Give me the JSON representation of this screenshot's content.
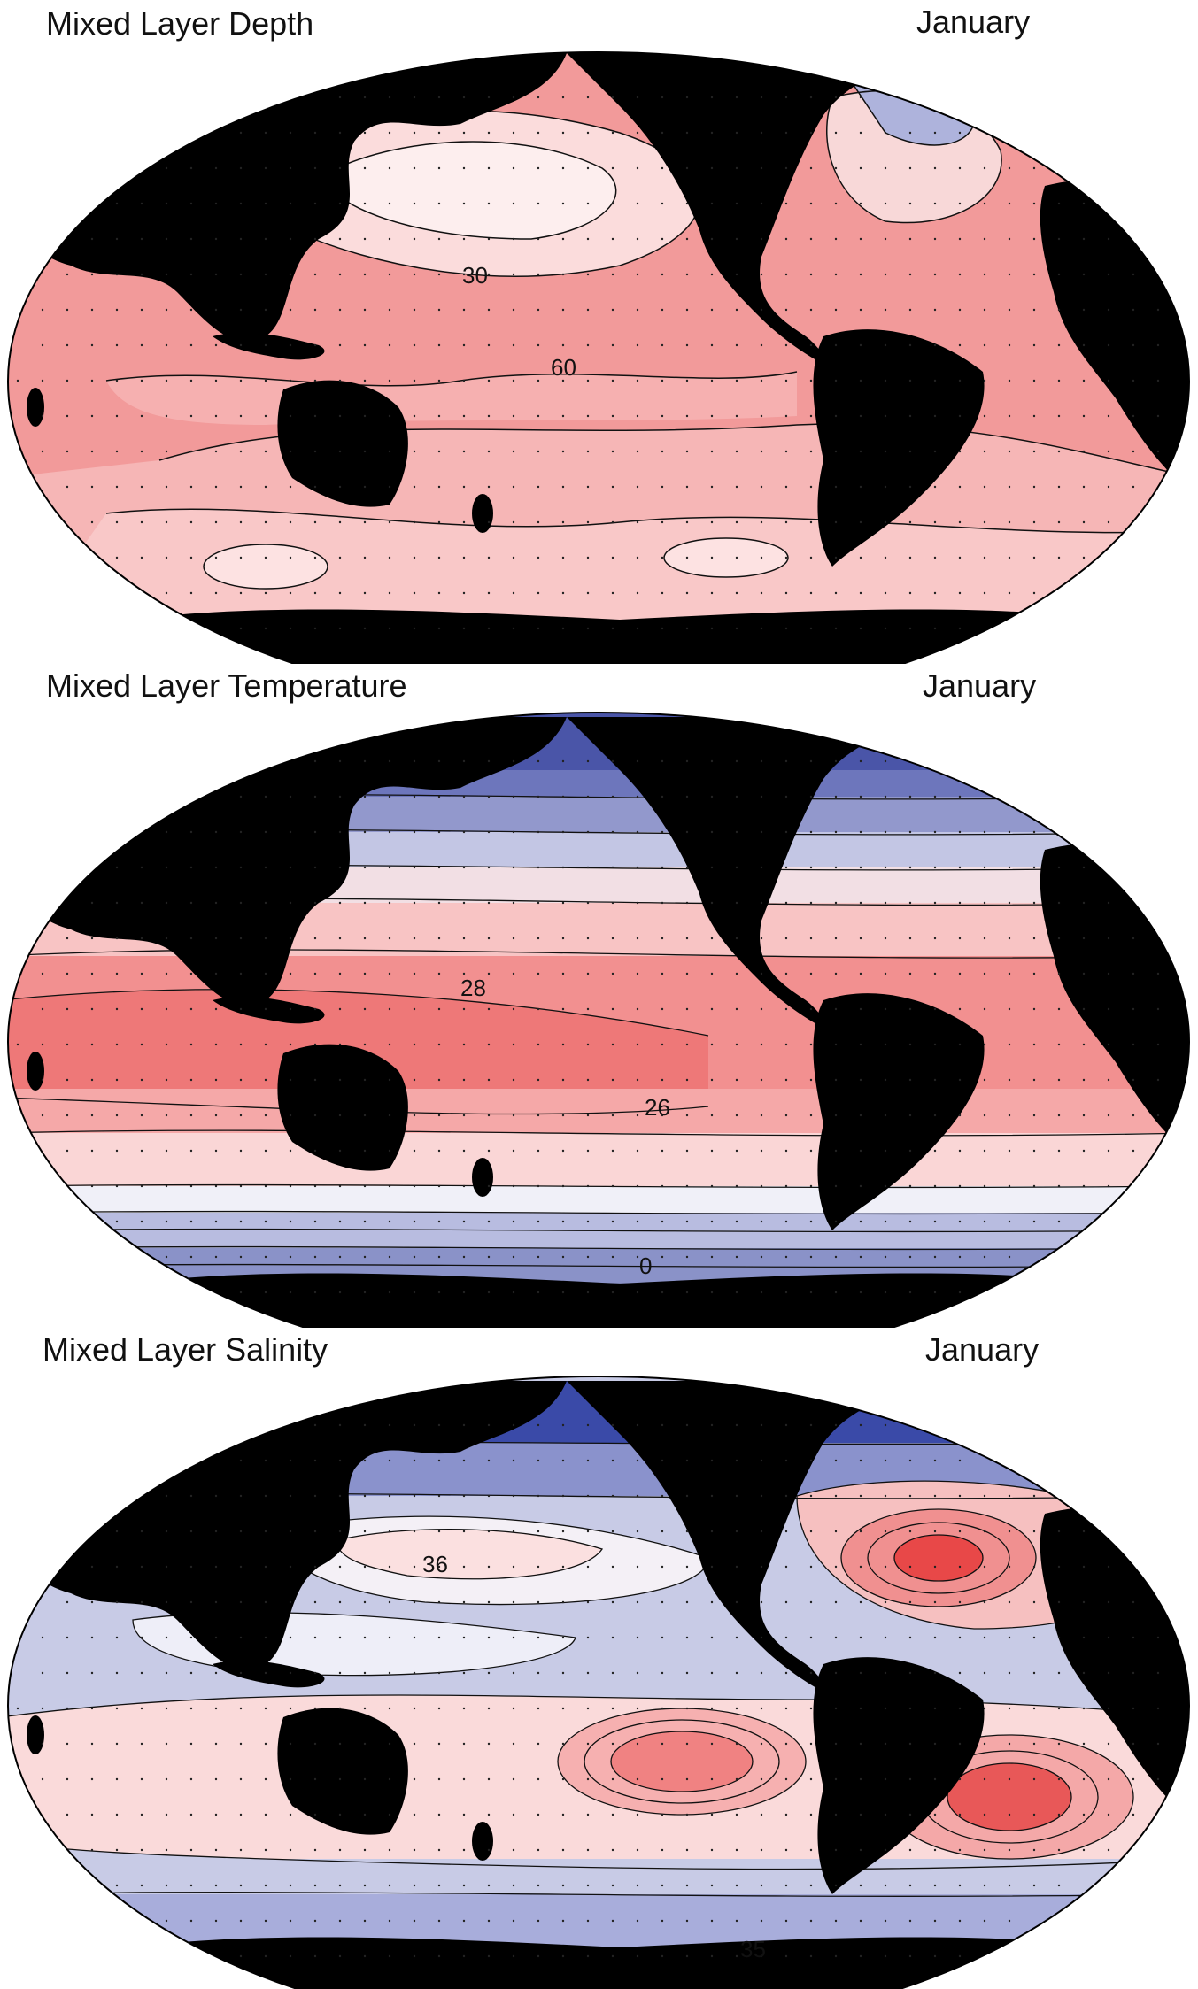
{
  "panels": [
    {
      "title": "Mixed Layer Depth",
      "month": "January",
      "contour_labels": [
        "30",
        "60"
      ],
      "colors": {
        "low": "#ffffff",
        "mid": "#f7b8b8",
        "high": "#ef8080",
        "cold": "#6a70b8"
      }
    },
    {
      "title": "Mixed Layer Temperature",
      "month": "January",
      "contour_labels": [
        "28",
        "26",
        "0"
      ],
      "colors": {
        "warm": "#ee7070",
        "mid": "#f8d4d4",
        "cool": "#b9bde0",
        "cold": "#4a55a8"
      }
    },
    {
      "title": "Mixed Layer Salinity",
      "month": "January",
      "contour_labels": [
        "36",
        "35"
      ],
      "colors": {
        "high": "#e84848",
        "mid": "#f6d6d6",
        "white": "#ffffff",
        "low": "#9aa0d4",
        "verylow": "#3a4aa8"
      }
    }
  ],
  "land_color": "#000000"
}
